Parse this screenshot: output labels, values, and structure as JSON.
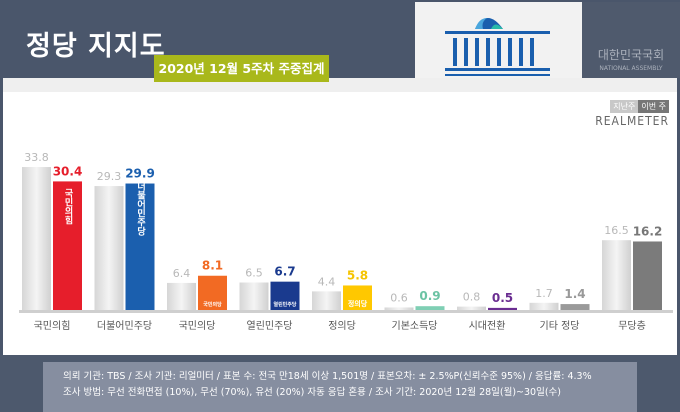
{
  "header": {
    "title": "정당 지지도",
    "subtitle": "2020년 12월 5주차 주중집계",
    "assembly_ko": "대한민국국회",
    "assembly_en": "NATIONAL ASSEMBLY"
  },
  "legend": {
    "prev": "지난주",
    "curr": "이번 주",
    "brand": "REALMETER"
  },
  "chart_data": {
    "type": "bar",
    "categories": [
      "국민의힘",
      "더불어민주당",
      "국민의당",
      "열린민주당",
      "정의당",
      "기본소득당",
      "시대전환",
      "기타 정당",
      "무당층"
    ],
    "series": [
      {
        "name": "지난주",
        "values": [
          33.8,
          29.3,
          6.4,
          6.5,
          4.4,
          0.6,
          0.8,
          1.7,
          16.5
        ]
      },
      {
        "name": "이번 주",
        "values": [
          30.4,
          29.9,
          8.1,
          6.7,
          5.8,
          0.9,
          0.5,
          1.4,
          16.2
        ]
      }
    ],
    "bar_logos": [
      "국민의힘",
      "더불어민주당",
      "국민의당",
      "열린민주당",
      "정의당",
      "",
      "",
      "",
      ""
    ],
    "colors": [
      "#e61e2b",
      "#1b5fae",
      "#f26a23",
      "#1a3a8e",
      "#ffc800",
      "#7fcfb4",
      "#6a2d91",
      "#9a9a9a",
      "#7b7b7b"
    ],
    "label_colors": [
      "#e61e2b",
      "#1b5fae",
      "#f26a23",
      "#1a3a8e",
      "#f5c400",
      "#6cc3a4",
      "#6a2d91",
      "#999999",
      "#777777"
    ],
    "prev_color": "#dcdcdc"
  },
  "footer": {
    "line1": "의뢰 기관: TBS / 조사 기관: 리얼미터 / 표본 수: 전국 만18세 이상 1,501명 / 표본오차: ± 2.5%P(신뢰수준 95%) / 응답률: 4.3%",
    "line2": "조사 방법: 무선 전화면접 (10%), 무선 (70%), 유선 (20%) 자동 응답 혼용 / 조사 기간: 2020년 12월 28일(월)~30일(수)"
  }
}
